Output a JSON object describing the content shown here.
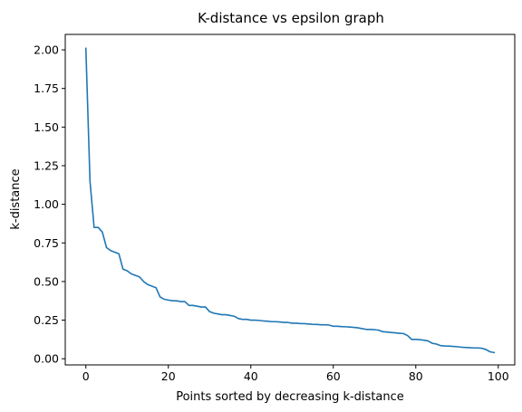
{
  "chart_data": {
    "type": "line",
    "title": "K-distance vs epsilon graph",
    "xlabel": "Points sorted by decreasing k-distance",
    "ylabel": "k-distance",
    "xlim": [
      -5,
      104
    ],
    "ylim": [
      -0.04,
      2.1
    ],
    "xticks": [
      0,
      20,
      40,
      60,
      80,
      100
    ],
    "xtick_labels": [
      "0",
      "20",
      "40",
      "60",
      "80",
      "100"
    ],
    "yticks": [
      0.0,
      0.25,
      0.5,
      0.75,
      1.0,
      1.25,
      1.5,
      1.75,
      2.0
    ],
    "ytick_labels": [
      "0.00",
      "0.25",
      "0.50",
      "0.75",
      "1.00",
      "1.25",
      "1.50",
      "1.75",
      "2.00"
    ],
    "grid": false,
    "legend": "none",
    "line_color": "#1f77b4",
    "series": [
      {
        "values": [
          2.01,
          1.15,
          0.85,
          0.85,
          0.82,
          0.72,
          0.7,
          0.69,
          0.68,
          0.58,
          0.57,
          0.55,
          0.54,
          0.53,
          0.5,
          0.48,
          0.47,
          0.46,
          0.4,
          0.385,
          0.38,
          0.375,
          0.375,
          0.37,
          0.37,
          0.345,
          0.345,
          0.34,
          0.335,
          0.335,
          0.305,
          0.295,
          0.29,
          0.285,
          0.285,
          0.28,
          0.275,
          0.26,
          0.255,
          0.255,
          0.25,
          0.25,
          0.248,
          0.245,
          0.243,
          0.24,
          0.24,
          0.238,
          0.235,
          0.235,
          0.23,
          0.23,
          0.228,
          0.227,
          0.225,
          0.223,
          0.222,
          0.22,
          0.22,
          0.218,
          0.21,
          0.21,
          0.208,
          0.207,
          0.205,
          0.203,
          0.2,
          0.195,
          0.19,
          0.19,
          0.188,
          0.185,
          0.175,
          0.173,
          0.17,
          0.168,
          0.165,
          0.163,
          0.15,
          0.125,
          0.125,
          0.123,
          0.12,
          0.115,
          0.1,
          0.095,
          0.085,
          0.083,
          0.082,
          0.08,
          0.078,
          0.075,
          0.073,
          0.072,
          0.07,
          0.07,
          0.068,
          0.06,
          0.045,
          0.04
        ]
      }
    ]
  }
}
